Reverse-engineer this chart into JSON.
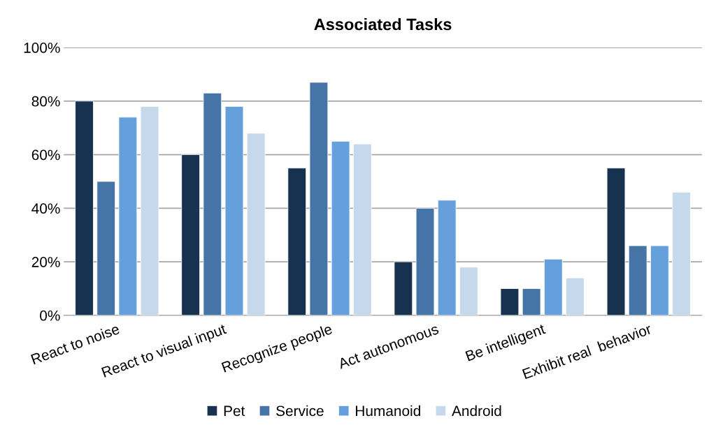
{
  "chart_data": {
    "type": "bar",
    "title": "Associated Tasks",
    "categories": [
      "React to noise",
      "React to visual input",
      "Recognize people",
      "Act autonomous",
      "Be intelligent",
      "Exhibit real  behavior"
    ],
    "series": [
      {
        "name": "Pet",
        "color": "#17324f",
        "values": [
          80,
          60,
          55,
          20,
          10,
          55
        ]
      },
      {
        "name": "Service",
        "color": "#4674a6",
        "values": [
          50,
          83,
          87,
          40,
          10,
          26
        ]
      },
      {
        "name": "Humanoid",
        "color": "#66a0dc",
        "values": [
          74,
          78,
          65,
          43,
          21,
          26
        ]
      },
      {
        "name": "Android",
        "color": "#c5d8ec",
        "values": [
          78,
          68,
          64,
          18,
          14,
          46
        ]
      }
    ],
    "ylim": [
      0,
      100
    ],
    "yticks": [
      {
        "value": 0,
        "label": "0%"
      },
      {
        "value": 20,
        "label": "20%"
      },
      {
        "value": 40,
        "label": "40%"
      },
      {
        "value": 60,
        "label": "60%"
      },
      {
        "value": 80,
        "label": "80%"
      },
      {
        "value": 100,
        "label": "100%"
      }
    ],
    "grid": "y",
    "legend": "bottom"
  }
}
